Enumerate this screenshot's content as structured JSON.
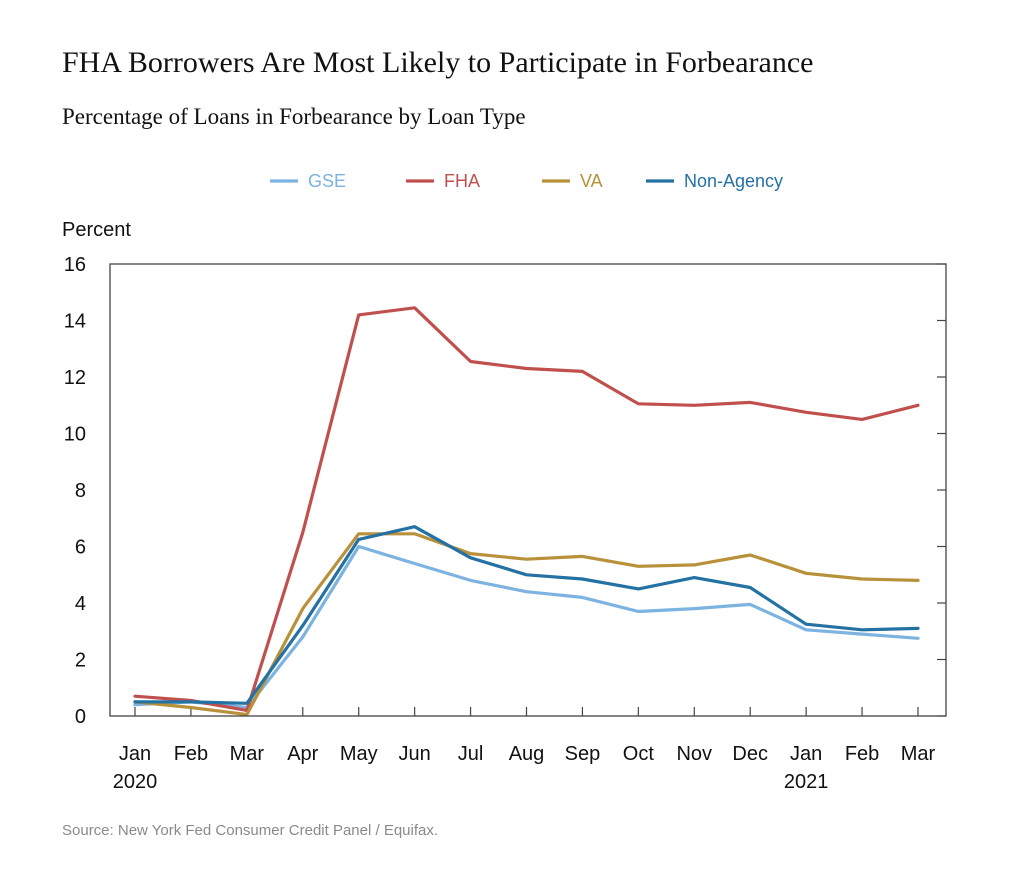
{
  "title": "FHA Borrowers Are Most Likely to Participate in Forbearance",
  "subtitle": "Percentage of Loans in Forbearance by Loan Type",
  "source": "Source: New York Fed Consumer Credit Panel / Equifax.",
  "chart_data": {
    "type": "line",
    "ylabel": "Percent",
    "xlabel": "",
    "ylim": [
      0,
      16
    ],
    "yticks": [
      0,
      2,
      4,
      6,
      8,
      10,
      12,
      14,
      16
    ],
    "grid": false,
    "legend_position": "top",
    "x": [
      "Jan",
      "Feb",
      "Mar",
      "Apr",
      "May",
      "Jun",
      "Jul",
      "Aug",
      "Sep",
      "Oct",
      "Nov",
      "Dec",
      "Jan",
      "Feb",
      "Mar"
    ],
    "year_labels": [
      {
        "index": 0,
        "label": "2020"
      },
      {
        "index": 12,
        "label": "2021"
      }
    ],
    "series": [
      {
        "name": "GSE",
        "color": "#7cb3e0",
        "values": [
          0.4,
          0.5,
          0.3,
          2.8,
          6.0,
          5.4,
          4.8,
          4.4,
          4.2,
          3.7,
          3.8,
          3.95,
          3.05,
          2.9,
          2.75
        ]
      },
      {
        "name": "FHA",
        "color": "#c0504d",
        "values": [
          0.7,
          0.55,
          0.2,
          6.5,
          14.2,
          14.45,
          12.55,
          12.3,
          12.2,
          11.05,
          11.0,
          11.1,
          10.75,
          10.5,
          11.0
        ]
      },
      {
        "name": "VA",
        "color": "#b8913a",
        "values": [
          0.5,
          0.3,
          0.05,
          3.8,
          6.45,
          6.45,
          5.75,
          5.55,
          5.65,
          5.3,
          5.35,
          5.7,
          5.05,
          4.85,
          4.8
        ]
      },
      {
        "name": "Non-Agency",
        "color": "#2471a3",
        "values": [
          0.5,
          0.5,
          0.45,
          3.2,
          6.25,
          6.7,
          5.6,
          5.0,
          4.85,
          4.5,
          4.9,
          4.55,
          3.25,
          3.05,
          3.1
        ]
      }
    ]
  }
}
